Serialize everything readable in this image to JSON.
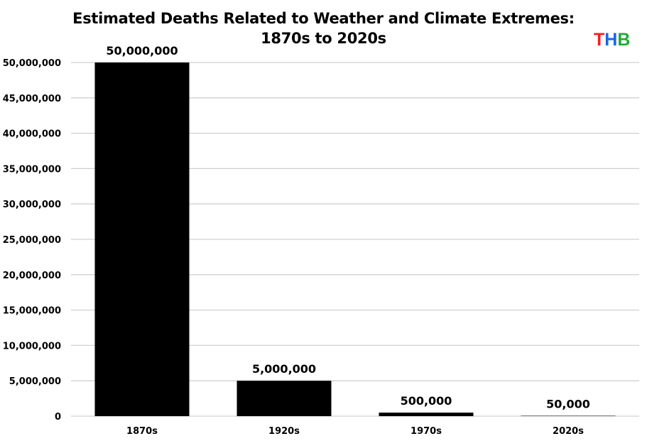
{
  "chart_data": {
    "type": "bar",
    "title_line1": "Estimated Deaths Related to Weather and Climate Extremes:",
    "title_line2": "1870s to 2020s",
    "categories": [
      "1870s",
      "1920s",
      "1970s",
      "2020s"
    ],
    "values": [
      50000000,
      5000000,
      500000,
      50000
    ],
    "data_labels": [
      "50,000,000",
      "5,000,000",
      "500,000",
      "50,000"
    ],
    "ylim": [
      0,
      50000000
    ],
    "yticks": [
      0,
      5000000,
      10000000,
      15000000,
      20000000,
      25000000,
      30000000,
      35000000,
      40000000,
      45000000,
      50000000
    ],
    "ytick_labels": [
      "0",
      "5,000,000",
      "10,000,000",
      "15,000,000",
      "20,000,000",
      "25,000,000",
      "30,000,000",
      "35,000,000",
      "40,000,000",
      "45,000,000",
      "50,000,000"
    ],
    "xlabel": "",
    "ylabel": "",
    "grid": true,
    "bar_color": "#000000",
    "grid_color": "#d0d0d0"
  },
  "logo": {
    "letters": [
      {
        "char": "T",
        "color": "#ff1a1a"
      },
      {
        "char": "H",
        "color": "#1a66e6"
      },
      {
        "char": "B",
        "color": "#22aa33"
      }
    ]
  }
}
